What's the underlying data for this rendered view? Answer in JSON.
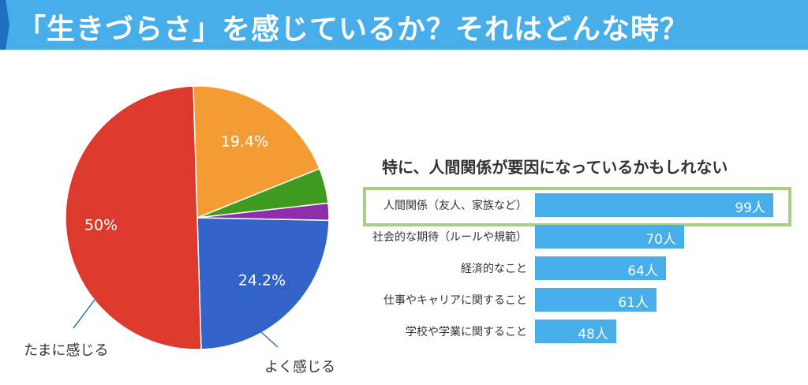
{
  "header": {
    "title": "「生きづらさ」を感じているか？それはどんな時？"
  },
  "chart_data": [
    {
      "type": "pie",
      "slices": [
        {
          "label": "",
          "value": 19.4,
          "display": "19.4%",
          "color": "#f39c33"
        },
        {
          "label": "",
          "value": 4.3,
          "display": "",
          "color": "#3f9a20"
        },
        {
          "label": "",
          "value": 2.1,
          "display": "",
          "color": "#8d2fa8"
        },
        {
          "label": "よく感じる",
          "value": 24.2,
          "display": "24.2%",
          "color": "#3263c9"
        },
        {
          "label": "たまに感じる",
          "value": 50,
          "display": "50%",
          "color": "#dc3a2c"
        }
      ]
    },
    {
      "type": "bar",
      "orientation": "horizontal",
      "title": "特に、人間関係が要因になっているかもしれない",
      "categories": [
        "人間関係（友人、家族など）",
        "社会的な期待（ルールや規範）",
        "経済的なこと",
        "仕事やキャリアに関すること",
        "学校や学業に関すること"
      ],
      "values": [
        99,
        70,
        64,
        61,
        48
      ],
      "labels": [
        "99人",
        "70人",
        "64人",
        "61人",
        "48人"
      ],
      "highlighted": 0,
      "color": "#47aeea",
      "highlight_color": "#a6cf85"
    }
  ]
}
